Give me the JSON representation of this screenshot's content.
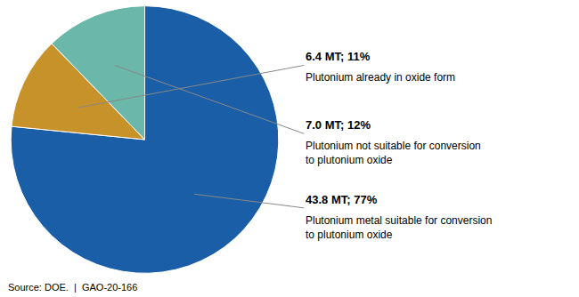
{
  "chart_data": {
    "type": "pie",
    "categories": [
      "Plutonium metal suitable for conversion\nto plutonium oxide",
      "Plutonium already in oxide form",
      "Plutonium not suitable for conversion\nto plutonium oxide"
    ],
    "values": [
      43.8,
      6.4,
      7.0
    ],
    "value_labels": [
      "43.8 MT; 77%",
      "6.4 MT; 11%",
      "7.0 MT; 12%"
    ],
    "data_labels": true,
    "colors": [
      "#1a5ea8",
      "#c8922a",
      "#6bb8aa"
    ],
    "annotations": [
      "Source: DOE.  |  GAO-20-166"
    ]
  }
}
